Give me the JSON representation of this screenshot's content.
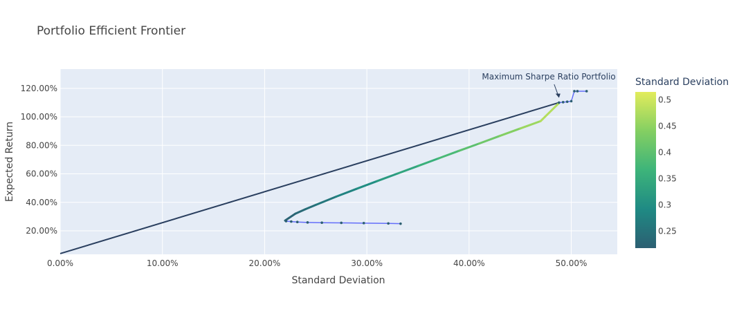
{
  "chart_data": {
    "type": "line",
    "title": "Portfolio Efficient Frontier",
    "xlabel": "Standard Deviation",
    "ylabel": "Expected Return",
    "xlim": [
      0.0,
      0.545
    ],
    "ylim": [
      0.035,
      1.335
    ],
    "x_ticks": [
      0.0,
      0.1,
      0.2,
      0.3,
      0.4,
      0.5
    ],
    "x_tick_labels": [
      "0.00%",
      "10.00%",
      "20.00%",
      "30.00%",
      "40.00%",
      "50.00%"
    ],
    "y_ticks": [
      0.2,
      0.4,
      0.6,
      0.8,
      1.0,
      1.2
    ],
    "y_tick_labels": [
      "20.00%",
      "40.00%",
      "60.00%",
      "80.00%",
      "100.00%",
      "120.00%"
    ],
    "grid": true,
    "frontier": {
      "x": [
        0.22,
        0.23,
        0.24,
        0.25,
        0.27,
        0.29,
        0.31,
        0.33,
        0.35,
        0.37,
        0.39,
        0.41,
        0.43,
        0.45,
        0.47,
        0.488
      ],
      "y": [
        0.272,
        0.32,
        0.352,
        0.382,
        0.44,
        0.495,
        0.549,
        0.602,
        0.655,
        0.708,
        0.761,
        0.813,
        0.866,
        0.918,
        0.97,
        1.097
      ],
      "color_value": "Standard Deviation"
    },
    "random_portfolios": {
      "x": [
        0.221,
        0.226,
        0.232,
        0.242,
        0.256,
        0.275,
        0.297,
        0.321,
        0.333
      ],
      "y": [
        0.268,
        0.265,
        0.262,
        0.259,
        0.257,
        0.256,
        0.254,
        0.252,
        0.25
      ],
      "color": "#636efa"
    },
    "random_portfolios_high": {
      "x": [
        0.488,
        0.492,
        0.496,
        0.5,
        0.503,
        0.506,
        0.515
      ],
      "y": [
        1.1,
        1.103,
        1.106,
        1.11,
        1.18,
        1.18,
        1.18
      ],
      "color": "#636efa"
    },
    "capital_market_line": {
      "x": [
        0.0,
        0.488
      ],
      "y": [
        0.04,
        1.1
      ],
      "color": "#2a3f5f"
    },
    "annotation": {
      "text": "Maximum Sharpe Ratio Portfolio",
      "x": 0.488,
      "y": 1.1
    },
    "colorbar": {
      "title": "Standard Deviation",
      "min": 0.218,
      "max": 0.515,
      "ticks": [
        0.25,
        0.3,
        0.35,
        0.4,
        0.45,
        0.5
      ],
      "tick_labels": [
        "0.25",
        "0.3",
        "0.35",
        "0.4",
        "0.45",
        "0.5"
      ],
      "colorscale": [
        "#440154",
        "#21918c",
        "#5ec962",
        "#fde725"
      ],
      "colorscale_display": [
        "#2c5f72",
        "#1f8a84",
        "#3db47a",
        "#84cf62",
        "#e2ec5c"
      ]
    },
    "plot_bg": "#e5ecf6"
  }
}
